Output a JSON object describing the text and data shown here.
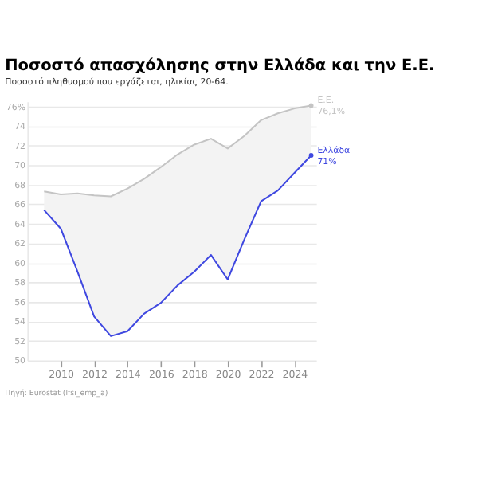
{
  "chart_data": {
    "type": "line",
    "title": "Ποσοστό απασχόλησης στην Ελλάδα και την Ε.Ε.",
    "subtitle": "Ποσοστό πληθυσμού που εργάζεται, ηλικίας 20-64.",
    "x": [
      2009,
      2010,
      2011,
      2012,
      2013,
      2014,
      2015,
      2016,
      2017,
      2018,
      2019,
      2020,
      2021,
      2022,
      2023,
      2024,
      2025
    ],
    "series": [
      {
        "name": "Ε.Ε.",
        "color": "#c4c4c4",
        "values": [
          67.3,
          67.0,
          67.1,
          66.9,
          66.8,
          67.6,
          68.6,
          69.8,
          71.1,
          72.1,
          72.7,
          71.7,
          73.0,
          74.6,
          75.3,
          75.8,
          76.1
        ],
        "lower": [
          65.4,
          63.5,
          59.1,
          54.5,
          52.5,
          53.0,
          54.8,
          55.9,
          57.7,
          59.1,
          60.8,
          58.3,
          62.4,
          66.3,
          67.4,
          69.2,
          71.0
        ],
        "upper": [
          67.3,
          67.0,
          67.1,
          66.9,
          66.8,
          67.6,
          68.6,
          69.8,
          71.1,
          72.1,
          72.7,
          71.7,
          73.0,
          74.6,
          75.3,
          75.8,
          76.1
        ],
        "value_labels": [
          null,
          null,
          null,
          null,
          null,
          null,
          null,
          null,
          null,
          null,
          null,
          null,
          null,
          null,
          null,
          null,
          "76,1%"
        ]
      },
      {
        "name": "Ελλάδα",
        "color": "#3f48e0",
        "values": [
          65.4,
          63.5,
          59.1,
          54.5,
          52.5,
          53.0,
          54.8,
          55.9,
          57.7,
          59.1,
          60.8,
          58.3,
          62.4,
          66.3,
          67.4,
          69.2,
          71.0
        ],
        "value_labels": [
          null,
          null,
          null,
          null,
          null,
          null,
          null,
          null,
          null,
          null,
          null,
          null,
          null,
          null,
          null,
          null,
          "71%"
        ]
      }
    ],
    "xlim": [
      2008,
      2025.3
    ],
    "xticks": [
      2010,
      2012,
      2014,
      2016,
      2018,
      2020,
      2022,
      2024
    ],
    "ylim": [
      50,
      76.5
    ],
    "yticks": [
      {
        "value": 76,
        "label": "76%"
      },
      74,
      72,
      70,
      68,
      66,
      64,
      62,
      60,
      58,
      56,
      54,
      52,
      50
    ],
    "grid": "y",
    "legend": false,
    "marker": "none",
    "line_style": "solid",
    "annotations": [
      "Πηγή: Eurostat (lfsi_emp_a)"
    ]
  }
}
